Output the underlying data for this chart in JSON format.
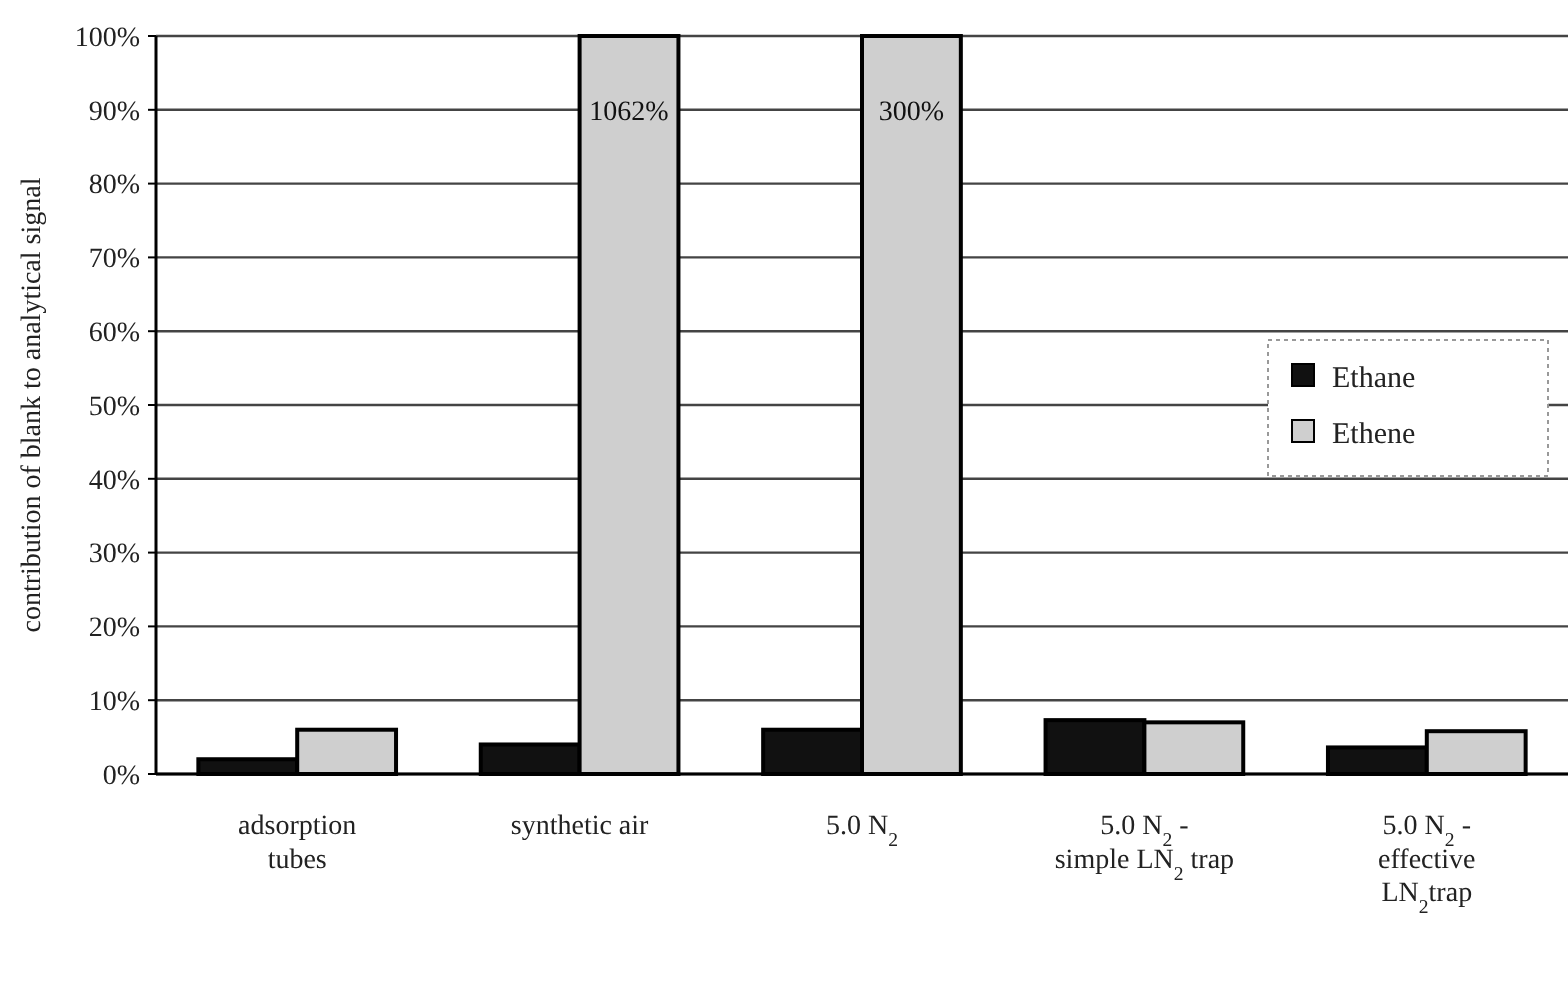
{
  "chart_data": {
    "type": "bar",
    "ylabel": "contribution of blank to analytical signal",
    "categories": [
      "adsorption tubes",
      "synthetic air",
      "5.0 N$_{2}$",
      "5.0 N$_{2}$ - simple LN$_{2}$ trap",
      "5.0 N$_{2}$ - effective LN$_{2}$trap"
    ],
    "series": [
      {
        "name": "Ethane",
        "color": "#111111",
        "values": [
          2,
          4,
          6,
          7.3,
          3.6
        ]
      },
      {
        "name": "Ethene",
        "color": "#cfcfcf",
        "values": [
          6,
          100,
          100,
          7,
          5.8
        ]
      }
    ],
    "ylim": [
      0,
      100
    ],
    "yticks": [
      {
        "value": 0,
        "label": "0%"
      },
      {
        "value": 10,
        "label": "10%"
      },
      {
        "value": 20,
        "label": "20%"
      },
      {
        "value": 30,
        "label": "30%"
      },
      {
        "value": 40,
        "label": "40%"
      },
      {
        "value": 50,
        "label": "50%"
      },
      {
        "value": 60,
        "label": "60%"
      },
      {
        "value": 70,
        "label": "70%"
      },
      {
        "value": 80,
        "label": "80%"
      },
      {
        "value": 90,
        "label": "90%"
      },
      {
        "value": 100,
        "label": "100%"
      }
    ],
    "annotations": [
      {
        "text": "1062%",
        "x": "synthetic air",
        "y": 90
      },
      {
        "text": "300%",
        "x": "5.0 N$_{2}$",
        "y": 90
      }
    ],
    "grid": "y",
    "legend": "right"
  }
}
